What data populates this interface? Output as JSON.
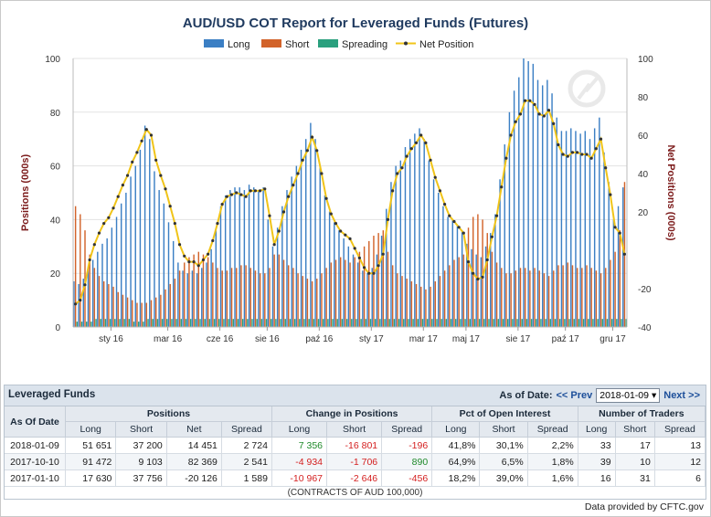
{
  "colors": {
    "long": "#3b7fc4",
    "short": "#d2632a",
    "spread": "#2aa07e",
    "net": "#f0c419",
    "net_marker": "#333333",
    "title": "#1f3a5f",
    "axis_title": "#7b1a1a",
    "grid": "#e3e3e3"
  },
  "chart_data": {
    "type": "bar",
    "title": "AUD/USD COT Report for Leveraged Funds (Futures)",
    "legend": [
      "Long",
      "Short",
      "Spreading",
      "Net Position"
    ],
    "legend_placement": "top-center",
    "ylabel": "Positions (000s)",
    "ylabel_right": "Net Positions (000s)",
    "ylim": [
      0,
      100
    ],
    "ylim_right": [
      -40,
      100
    ],
    "yticks": [
      "0",
      "20",
      "40",
      "60",
      "80",
      "100"
    ],
    "yticks_right": [
      "-40",
      "-20",
      "",
      "20",
      "40",
      "60",
      "80",
      "100"
    ],
    "xticks": [
      "sty 16",
      "mar 16",
      "cze 16",
      "sie 16",
      "paź 16",
      "sty 17",
      "mar 17",
      "maj 17",
      "sie 17",
      "paź 17",
      "gru 17"
    ],
    "grid": true,
    "series": [
      {
        "name": "Long",
        "values": [
          17,
          16,
          18,
          22,
          25,
          28,
          31,
          33,
          37,
          41,
          46,
          50,
          56,
          60,
          66,
          75,
          70,
          58,
          51,
          46,
          39,
          32,
          24,
          21,
          20,
          21,
          20,
          22,
          24,
          29,
          36,
          45,
          49,
          51,
          52,
          52,
          51,
          53,
          52,
          51,
          52,
          40,
          30,
          37,
          45,
          51,
          56,
          60,
          66,
          70,
          76,
          70,
          60,
          49,
          43,
          39,
          36,
          33,
          30,
          27,
          24,
          21,
          20,
          22,
          27,
          34,
          44,
          54,
          60,
          62,
          67,
          70,
          72,
          74,
          70,
          62,
          55,
          50,
          45,
          41,
          40,
          38,
          36,
          31,
          29,
          27,
          26,
          30,
          35,
          42,
          55,
          68,
          80,
          88,
          93,
          100,
          99,
          98,
          92,
          90,
          92,
          87,
          78,
          73,
          73,
          74,
          73,
          72,
          73,
          70,
          74,
          78,
          65,
          54,
          40,
          45,
          52
        ]
      },
      {
        "name": "Short",
        "values": [
          45,
          42,
          36,
          27,
          22,
          19,
          17,
          16,
          15,
          13,
          12,
          11,
          10,
          9,
          9,
          9,
          10,
          11,
          12,
          14,
          16,
          18,
          21,
          24,
          26,
          27,
          28,
          27,
          26,
          24,
          22,
          21,
          21,
          22,
          22,
          23,
          23,
          22,
          21,
          20,
          20,
          22,
          27,
          27,
          25,
          23,
          22,
          20,
          19,
          18,
          17,
          18,
          20,
          22,
          24,
          25,
          26,
          25,
          24,
          26,
          28,
          30,
          32,
          34,
          35,
          36,
          28,
          23,
          20,
          19,
          18,
          17,
          16,
          15,
          14,
          15,
          17,
          19,
          21,
          23,
          25,
          26,
          27,
          37,
          41,
          42,
          40,
          35,
          28,
          24,
          22,
          20,
          20,
          21,
          22,
          22,
          21,
          22,
          21,
          20,
          19,
          21,
          23,
          23,
          24,
          23,
          22,
          22,
          23,
          22,
          21,
          20,
          22,
          25,
          28,
          36,
          54
        ]
      },
      {
        "name": "Spreading",
        "values": [
          2,
          2,
          2,
          2,
          3,
          3,
          3,
          3,
          3,
          3,
          3,
          3,
          2,
          2,
          2,
          3,
          3,
          3,
          3,
          3,
          3,
          3,
          3,
          3,
          3,
          3,
          3,
          3,
          3,
          3,
          3,
          3,
          3,
          3,
          3,
          3,
          3,
          3,
          3,
          3,
          3,
          3,
          3,
          3,
          3,
          3,
          3,
          3,
          3,
          3,
          3,
          3,
          3,
          3,
          3,
          3,
          3,
          3,
          3,
          3,
          3,
          3,
          3,
          3,
          3,
          3,
          3,
          3,
          3,
          3,
          3,
          3,
          3,
          3,
          3,
          3,
          3,
          3,
          3,
          3,
          3,
          3,
          3,
          3,
          3,
          3,
          3,
          3,
          3,
          3,
          3,
          3,
          3,
          3,
          3,
          3,
          3,
          3,
          3,
          3,
          3,
          3,
          3,
          3,
          3,
          3,
          3,
          3,
          3,
          3,
          3,
          3,
          3,
          3,
          3,
          3,
          3
        ]
      },
      {
        "name": "Net Position",
        "values": [
          -28,
          -26,
          -18,
          -5,
          3,
          9,
          14,
          17,
          22,
          28,
          34,
          39,
          46,
          51,
          57,
          63,
          60,
          47,
          39,
          32,
          23,
          14,
          3,
          -3,
          -6,
          -6,
          -8,
          -5,
          -2,
          5,
          14,
          24,
          28,
          29,
          30,
          29,
          28,
          31,
          31,
          31,
          32,
          18,
          3,
          10,
          20,
          28,
          34,
          40,
          47,
          52,
          59,
          52,
          40,
          27,
          19,
          14,
          10,
          8,
          6,
          1,
          -4,
          -9,
          -12,
          -12,
          -8,
          -2,
          16,
          31,
          40,
          43,
          49,
          53,
          56,
          60,
          56,
          47,
          38,
          31,
          24,
          18,
          15,
          12,
          9,
          -6,
          -12,
          -15,
          -14,
          -5,
          7,
          18,
          33,
          48,
          60,
          67,
          71,
          78,
          78,
          76,
          71,
          70,
          73,
          66,
          55,
          50,
          49,
          51,
          51,
          50,
          50,
          48,
          53,
          58,
          43,
          29,
          12,
          9,
          -2
        ]
      }
    ]
  },
  "table": {
    "title": "Leveraged Funds",
    "as_of_label": "As of Date:",
    "prev_label": "<< Prev",
    "next_label": "Next >>",
    "selected_date": "2018-01-09",
    "group_headers": [
      "As Of Date",
      "Positions",
      "Change in Positions",
      "Pct of Open Interest",
      "Number of Traders"
    ],
    "sub_headers": [
      "Long",
      "Short",
      "Net",
      "Spread",
      "Long",
      "Short",
      "Spread",
      "Long",
      "Short",
      "Spread",
      "Long",
      "Short",
      "Spread"
    ],
    "rows": [
      {
        "date": "2018-01-09",
        "cells": [
          "51 651",
          "37 200",
          "14 451",
          "2 724",
          "7 356",
          "-16 801",
          "-196",
          "41,8%",
          "30,1%",
          "2,2%",
          "33",
          "17",
          "13"
        ]
      },
      {
        "date": "2017-10-10",
        "cells": [
          "91 472",
          "9 103",
          "82 369",
          "2 541",
          "-4 934",
          "-1 706",
          "890",
          "64,9%",
          "6,5%",
          "1,8%",
          "39",
          "10",
          "12"
        ]
      },
      {
        "date": "2017-01-10",
        "cells": [
          "17 630",
          "37 756",
          "-20 126",
          "1 589",
          "-10 967",
          "-2 646",
          "-456",
          "18,2%",
          "39,0%",
          "1,6%",
          "16",
          "31",
          "6"
        ]
      }
    ],
    "footnote": "(CONTRACTS OF AUD 100,000)"
  },
  "credit": "Data provided by CFTC.gov"
}
